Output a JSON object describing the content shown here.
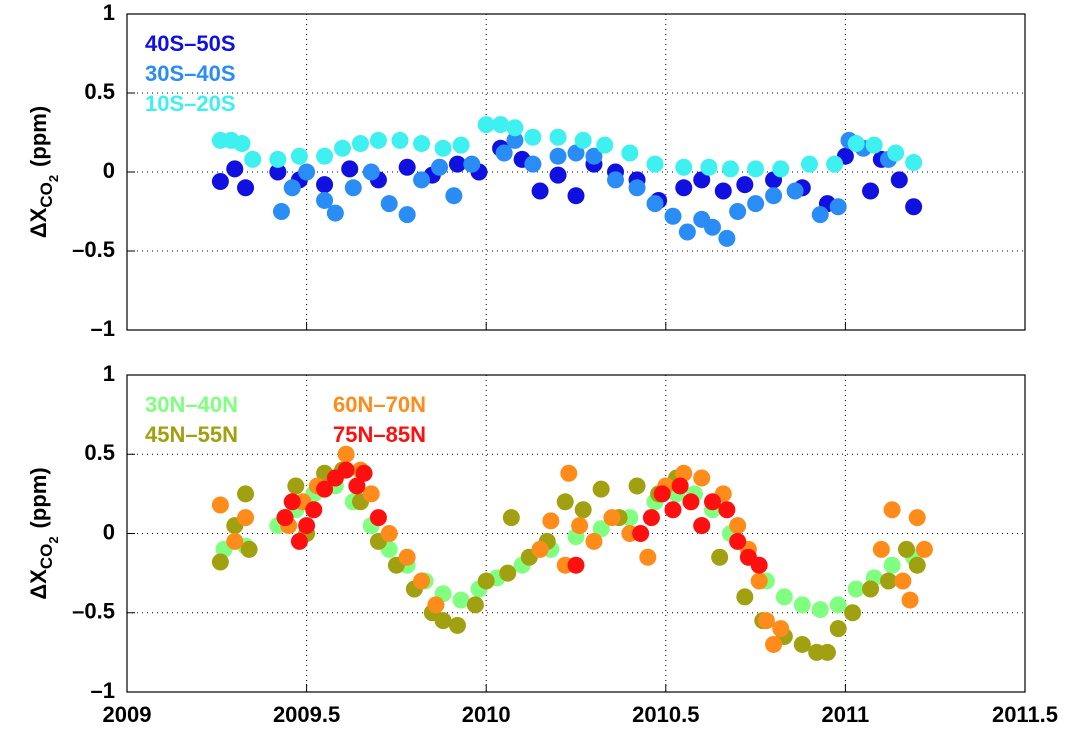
{
  "chart_data": [
    {
      "type": "scatter",
      "ylabel": "ΔX",
      "ylabel_sub": "CO",
      "ylabel_subsub": "2",
      "ylabel_units": "(ppm)",
      "xlim": [
        2009,
        2011.5
      ],
      "xticks": [
        2009,
        2009.5,
        2010,
        2010.5,
        2011,
        2011.5
      ],
      "show_xtick_labels": false,
      "ylim": [
        -1,
        1
      ],
      "yticks": [
        {
          "value": -1,
          "label": "–1"
        },
        {
          "value": -0.5,
          "label": "–0.5"
        },
        0,
        0.5,
        1
      ],
      "grid": true,
      "legend": "upper left",
      "legend_ncol": 1,
      "series": [
        {
          "name": "40S–50S",
          "color": "#1010e0",
          "x": [
            2009.26,
            2009.3,
            2009.33,
            2009.42,
            2009.48,
            2009.55,
            2009.62,
            2009.7,
            2009.78,
            2009.85,
            2009.92,
            2009.98,
            2010.04,
            2010.1,
            2010.15,
            2010.2,
            2010.25,
            2010.3,
            2010.36,
            2010.42,
            2010.48,
            2010.55,
            2010.6,
            2010.66,
            2010.72,
            2010.8,
            2010.88,
            2010.95,
            2011.0,
            2011.07,
            2011.1,
            2011.15,
            2011.19
          ],
          "values": [
            -0.06,
            0.02,
            -0.1,
            0,
            -0.05,
            -0.08,
            0.02,
            -0.05,
            0.03,
            -0.02,
            0.05,
            0,
            0.15,
            0.08,
            -0.12,
            -0.02,
            -0.15,
            0.05,
            0,
            -0.05,
            -0.18,
            -0.1,
            -0.05,
            -0.12,
            -0.08,
            -0.05,
            -0.1,
            -0.2,
            0.1,
            -0.12,
            0.08,
            -0.05,
            -0.22
          ]
        },
        {
          "name": "30S–40S",
          "color": "#2a8cf5",
          "x": [
            2009.43,
            2009.46,
            2009.5,
            2009.55,
            2009.58,
            2009.63,
            2009.68,
            2009.73,
            2009.78,
            2009.82,
            2009.87,
            2009.91,
            2009.96,
            2010.05,
            2010.08,
            2010.13,
            2010.2,
            2010.25,
            2010.3,
            2010.36,
            2010.42,
            2010.47,
            2010.52,
            2010.56,
            2010.6,
            2010.63,
            2010.67,
            2010.7,
            2010.75,
            2010.8,
            2010.86,
            2010.93,
            2010.98,
            2011.01,
            2011.05,
            2011.12
          ],
          "values": [
            -0.25,
            -0.1,
            0,
            -0.18,
            -0.26,
            -0.1,
            0,
            -0.2,
            -0.27,
            -0.05,
            0.03,
            -0.15,
            0.05,
            0.12,
            0.2,
            0.05,
            0.1,
            0.12,
            0.1,
            -0.05,
            -0.1,
            -0.2,
            -0.28,
            -0.38,
            -0.3,
            -0.35,
            -0.42,
            -0.25,
            -0.2,
            -0.15,
            -0.12,
            -0.27,
            -0.22,
            0.2,
            0.15,
            0.08
          ]
        },
        {
          "name": "10S–20S",
          "color": "#3ff0f0",
          "x": [
            2009.26,
            2009.29,
            2009.32,
            2009.35,
            2009.42,
            2009.48,
            2009.55,
            2009.6,
            2009.65,
            2009.7,
            2009.76,
            2009.82,
            2009.88,
            2009.93,
            2010.0,
            2010.04,
            2010.08,
            2010.13,
            2010.2,
            2010.27,
            2010.33,
            2010.4,
            2010.47,
            2010.55,
            2010.62,
            2010.68,
            2010.75,
            2010.82,
            2010.9,
            2010.97,
            2011.03,
            2011.08,
            2011.14,
            2011.19
          ],
          "values": [
            0.2,
            0.2,
            0.18,
            0.08,
            0.08,
            0.1,
            0.1,
            0.15,
            0.18,
            0.2,
            0.2,
            0.18,
            0.15,
            0.17,
            0.3,
            0.3,
            0.28,
            0.22,
            0.22,
            0.2,
            0.17,
            0.12,
            0.05,
            0.03,
            0.03,
            0.02,
            0.02,
            0.02,
            0.05,
            0.05,
            0.18,
            0.17,
            0.12,
            0.06
          ]
        }
      ]
    },
    {
      "type": "scatter",
      "ylabel": "ΔX",
      "ylabel_sub": "CO",
      "ylabel_subsub": "2",
      "ylabel_units": "(ppm)",
      "xlim": [
        2009,
        2011.5
      ],
      "xticks": [
        2009,
        2009.5,
        2010,
        2010.5,
        2011,
        2011.5
      ],
      "show_xtick_labels": true,
      "ylim": [
        -1,
        1
      ],
      "yticks": [
        {
          "value": -1,
          "label": "–1"
        },
        {
          "value": -0.5,
          "label": "–0.5"
        },
        0,
        0.5,
        1
      ],
      "grid": true,
      "legend": "upper left",
      "legend_ncol": 2,
      "series": [
        {
          "name": "30N–40N",
          "color": "#80ff80",
          "x": [
            2009.27,
            2009.33,
            2009.42,
            2009.47,
            2009.52,
            2009.58,
            2009.63,
            2009.68,
            2009.73,
            2009.78,
            2009.83,
            2009.88,
            2009.93,
            2009.98,
            2010.03,
            2010.1,
            2010.18,
            2010.25,
            2010.32,
            2010.4,
            2010.47,
            2010.53,
            2010.58,
            2010.63,
            2010.68,
            2010.73,
            2010.78,
            2010.83,
            2010.88,
            2010.93,
            2010.98,
            2011.03,
            2011.08,
            2011.13,
            2011.19
          ],
          "values": [
            -0.1,
            -0.08,
            0.05,
            0.15,
            0.25,
            0.3,
            0.2,
            0.05,
            -0.1,
            -0.2,
            -0.3,
            -0.38,
            -0.42,
            -0.35,
            -0.28,
            -0.2,
            -0.1,
            -0.02,
            0.03,
            0.1,
            0.2,
            0.25,
            0.25,
            0.15,
            0,
            -0.15,
            -0.3,
            -0.4,
            -0.45,
            -0.48,
            -0.45,
            -0.35,
            -0.28,
            -0.2,
            -0.15
          ]
        },
        {
          "name": "45N–55N",
          "color": "#a0a010",
          "x": [
            2009.26,
            2009.3,
            2009.33,
            2009.34,
            2009.44,
            2009.47,
            2009.5,
            2009.55,
            2009.6,
            2009.65,
            2009.7,
            2009.75,
            2009.8,
            2009.85,
            2009.88,
            2009.92,
            2009.97,
            2010.0,
            2010.06,
            2010.07,
            2010.12,
            2010.17,
            2010.22,
            2010.27,
            2010.32,
            2010.37,
            2010.42,
            2010.48,
            2010.53,
            2010.6,
            2010.65,
            2010.72,
            2010.77,
            2010.83,
            2010.88,
            2010.92,
            2010.95,
            2010.98,
            2011.02,
            2011.07,
            2011.12,
            2011.17,
            2011.2
          ],
          "values": [
            -0.18,
            0.05,
            0.25,
            -0.1,
            0.1,
            0.3,
            0,
            0.38,
            0.4,
            0.2,
            -0.05,
            -0.2,
            -0.35,
            -0.5,
            -0.55,
            -0.58,
            -0.45,
            -0.3,
            -0.25,
            0.1,
            -0.15,
            -0.05,
            0.2,
            0.15,
            0.28,
            0.1,
            0.3,
            0.25,
            0.35,
            0.05,
            -0.15,
            -0.4,
            -0.55,
            -0.65,
            -0.7,
            -0.75,
            -0.75,
            -0.6,
            -0.5,
            -0.35,
            -0.3,
            -0.1,
            -0.2
          ]
        },
        {
          "name": "60N–70N",
          "color": "#ff8c1a",
          "x": [
            2009.26,
            2009.3,
            2009.33,
            2009.45,
            2009.49,
            2009.53,
            2009.58,
            2009.61,
            2009.65,
            2009.68,
            2009.73,
            2009.78,
            2009.82,
            2009.86,
            2010.15,
            2010.18,
            2010.22,
            2010.23,
            2010.26,
            2010.3,
            2010.35,
            2010.4,
            2010.45,
            2010.5,
            2010.55,
            2010.6,
            2010.66,
            2010.7,
            2010.73,
            2010.76,
            2010.78,
            2010.8,
            2010.82,
            2011.1,
            2011.13,
            2011.16,
            2011.18,
            2011.2,
            2011.22
          ],
          "values": [
            0.18,
            -0.05,
            0.1,
            0.05,
            0.2,
            0.3,
            0.35,
            0.5,
            0.4,
            0.25,
            0,
            -0.15,
            -0.3,
            -0.45,
            -0.1,
            0.08,
            -0.2,
            0.38,
            0.05,
            -0.05,
            0.1,
            0,
            -0.15,
            0.3,
            0.38,
            0.35,
            0.25,
            0.05,
            -0.1,
            -0.3,
            -0.55,
            -0.7,
            -0.6,
            -0.1,
            0.15,
            -0.3,
            -0.42,
            0.1,
            -0.1
          ]
        },
        {
          "name": "75N–85N",
          "color": "#ff1010",
          "x": [
            2009.44,
            2009.46,
            2009.48,
            2009.5,
            2009.52,
            2009.55,
            2009.58,
            2009.61,
            2009.64,
            2009.66,
            2009.7,
            2010.25,
            2010.43,
            2010.46,
            2010.49,
            2010.52,
            2010.54,
            2010.57,
            2010.6,
            2010.63,
            2010.67,
            2010.7,
            2010.73,
            2010.76
          ],
          "values": [
            0.1,
            0.2,
            -0.05,
            0.05,
            0.15,
            0.28,
            0.35,
            0.4,
            0.3,
            0.38,
            0.1,
            -0.2,
            0,
            0.1,
            0.25,
            0.15,
            0.3,
            0.2,
            0.05,
            0.2,
            0.15,
            -0.05,
            -0.15,
            -0.2
          ]
        }
      ]
    }
  ]
}
